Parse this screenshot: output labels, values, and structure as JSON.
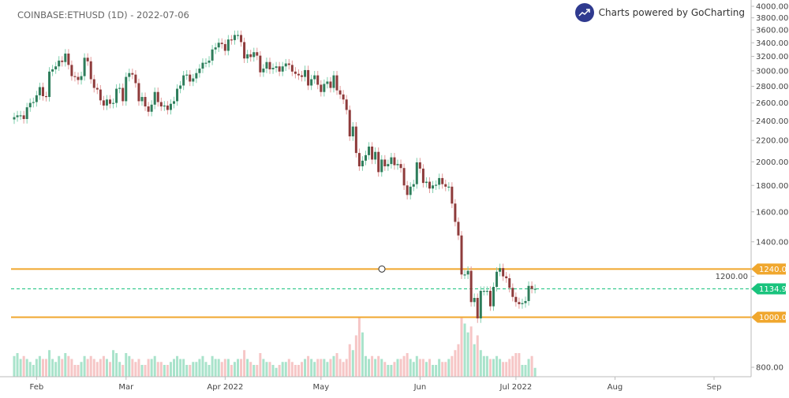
{
  "header": {
    "title": "COINBASE:ETHUSD (1D) - 2022-07-06",
    "brand": "Charts powered by GoCharting",
    "brand_icon": "trend-line-icon"
  },
  "colors": {
    "up": "#2e7d5b",
    "down": "#8e3b3b",
    "vol_up": "#a9e3cb",
    "vol_down": "#f6c6c6",
    "level": "#f0a72e",
    "last": "#19c37d",
    "logo": "#2f3a8f"
  },
  "chart_data": {
    "type": "candlestick",
    "symbol": "COINBASE:ETHUSD",
    "interval": "1D",
    "start_date": "2022-01-24",
    "y_scale": "log",
    "ylim": [
      780,
      4000
    ],
    "y_ticks": [
      "800.00",
      "1200.00",
      "1400.00",
      "1600.00",
      "1800.00",
      "2000.00",
      "2200.00",
      "2400.00",
      "2600.00",
      "2800.00",
      "3000.00",
      "3200.00",
      "3400.00",
      "3600.00",
      "3800.00",
      "4000.00"
    ],
    "x_labels": [
      {
        "label": "Feb",
        "date": "2022-02-01"
      },
      {
        "label": "Mar",
        "date": "2022-03-01"
      },
      {
        "label": "Apr 2022",
        "date": "2022-04-01"
      },
      {
        "label": "May",
        "date": "2022-05-01"
      },
      {
        "label": "Jun",
        "date": "2022-06-01"
      },
      {
        "label": "Jul 2022",
        "date": "2022-07-01"
      },
      {
        "label": "Aug",
        "date": "2022-08-01"
      },
      {
        "label": "Sep",
        "date": "2022-09-01"
      }
    ],
    "x_end_date": "2022-09-20",
    "close": [
      2440,
      2460,
      2460,
      2420,
      2550,
      2600,
      2610,
      2690,
      2790,
      2680,
      2670,
      2990,
      3020,
      3060,
      3140,
      3120,
      3240,
      3080,
      2930,
      2920,
      2880,
      2930,
      3180,
      3130,
      2890,
      2780,
      2760,
      2630,
      2570,
      2640,
      2590,
      2600,
      2770,
      2780,
      2620,
      2920,
      2970,
      2950,
      2840,
      2620,
      2670,
      2560,
      2500,
      2580,
      2730,
      2610,
      2560,
      2570,
      2520,
      2590,
      2620,
      2770,
      2810,
      2940,
      2950,
      2860,
      2900,
      2970,
      3030,
      3110,
      3110,
      3140,
      3300,
      3330,
      3400,
      3380,
      3280,
      3450,
      3440,
      3520,
      3520,
      3410,
      3170,
      3230,
      3190,
      3260,
      3210,
      2980,
      3030,
      3120,
      3020,
      3040,
      3060,
      2990,
      3060,
      3100,
      3080,
      2990,
      2960,
      2940,
      2920,
      3010,
      2810,
      2890,
      2940,
      2820,
      2730,
      2830,
      2860,
      2780,
      2940,
      2750,
      2700,
      2640,
      2520,
      2240,
      2340,
      2080,
      1960,
      2010,
      2060,
      2140,
      2020,
      2090,
      1910,
      2020,
      1960,
      1980,
      2040,
      1970,
      1980,
      1945,
      1800,
      1725,
      1790,
      1810,
      1995,
      1940,
      1820,
      1830,
      1775,
      1800,
      1805,
      1860,
      1810,
      1790,
      1790,
      1660,
      1530,
      1440,
      1210,
      1210,
      1230,
      1070,
      1090,
      995,
      1125,
      1125,
      1125,
      1050,
      1145,
      1225,
      1245,
      1200,
      1190,
      1140,
      1095,
      1070,
      1060,
      1065,
      1075,
      1150,
      1135,
      1135
    ],
    "volume_relative": [
      0.35,
      0.4,
      0.3,
      0.35,
      0.3,
      0.25,
      0.2,
      0.3,
      0.35,
      0.3,
      0.3,
      0.45,
      0.3,
      0.25,
      0.35,
      0.3,
      0.4,
      0.35,
      0.3,
      0.2,
      0.2,
      0.25,
      0.35,
      0.3,
      0.35,
      0.3,
      0.25,
      0.3,
      0.35,
      0.3,
      0.25,
      0.45,
      0.4,
      0.25,
      0.2,
      0.4,
      0.35,
      0.3,
      0.25,
      0.3,
      0.2,
      0.2,
      0.3,
      0.3,
      0.35,
      0.25,
      0.25,
      0.2,
      0.2,
      0.25,
      0.3,
      0.35,
      0.3,
      0.3,
      0.2,
      0.2,
      0.25,
      0.25,
      0.3,
      0.35,
      0.25,
      0.2,
      0.35,
      0.3,
      0.3,
      0.25,
      0.3,
      0.3,
      0.2,
      0.25,
      0.3,
      0.3,
      0.45,
      0.3,
      0.25,
      0.2,
      0.2,
      0.4,
      0.3,
      0.25,
      0.25,
      0.2,
      0.15,
      0.2,
      0.25,
      0.25,
      0.3,
      0.25,
      0.2,
      0.2,
      0.25,
      0.3,
      0.35,
      0.3,
      0.25,
      0.3,
      0.3,
      0.3,
      0.25,
      0.3,
      0.35,
      0.4,
      0.3,
      0.25,
      0.3,
      0.55,
      0.45,
      0.7,
      1.0,
      0.75,
      0.35,
      0.3,
      0.35,
      0.3,
      0.35,
      0.3,
      0.25,
      0.2,
      0.2,
      0.25,
      0.3,
      0.3,
      0.35,
      0.4,
      0.3,
      0.25,
      0.35,
      0.3,
      0.3,
      0.25,
      0.3,
      0.2,
      0.2,
      0.3,
      0.25,
      0.25,
      0.3,
      0.35,
      0.45,
      0.55,
      1.0,
      0.9,
      0.75,
      0.85,
      0.55,
      0.7,
      0.45,
      0.35,
      0.35,
      0.3,
      0.3,
      0.35,
      0.3,
      0.25,
      0.25,
      0.3,
      0.35,
      0.4,
      0.4,
      0.2,
      0.2,
      0.3,
      0.35,
      0.15
    ],
    "levels": [
      {
        "label": "1240.00",
        "price": 1240,
        "style": "solid",
        "color": "#f0a72e"
      },
      {
        "label": "1000.00",
        "price": 1000,
        "style": "solid",
        "color": "#f0a72e"
      }
    ],
    "last_price": {
      "label": "1134.92",
      "price": 1134.92,
      "style": "dashed",
      "color": "#19c37d"
    },
    "grid": false
  }
}
